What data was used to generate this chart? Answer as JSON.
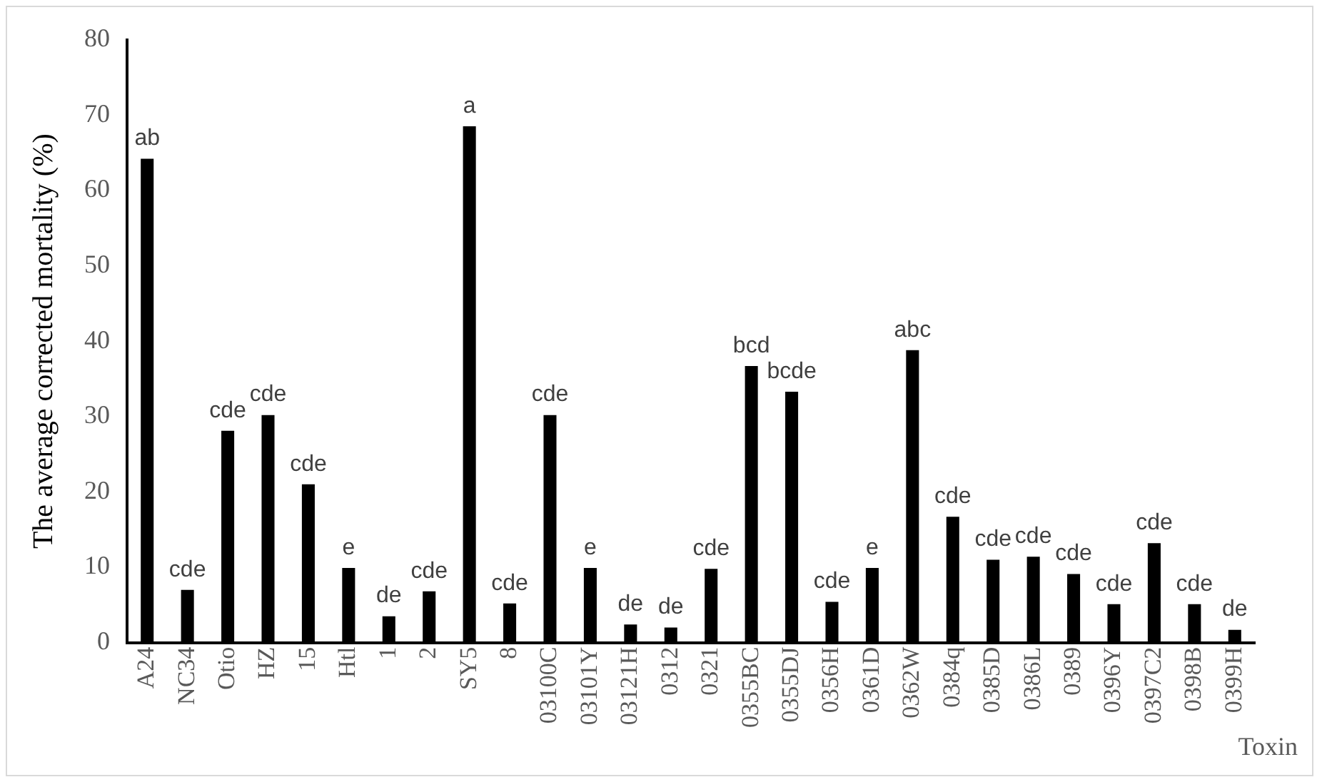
{
  "chart_data": {
    "type": "bar",
    "xlabel": "Toxin",
    "ylabel": "The average corrected mortality (%)",
    "categories": [
      "A24",
      "NC34",
      "Otio",
      "HZ",
      "15",
      "Htl",
      "1",
      "2",
      "SY5",
      "8",
      "03100C",
      "03101Y",
      "03121H",
      "0312",
      "0321",
      "0355BC",
      "0355DJ",
      "0356H",
      "0361D",
      "0362W",
      "0384q",
      "0385D",
      "0386L",
      "0389",
      "0396Y",
      "0397C2",
      "0398B",
      "0399H"
    ],
    "values": [
      64.2,
      7.0,
      28.1,
      30.2,
      21.0,
      9.9,
      3.5,
      6.8,
      68.5,
      5.2,
      30.2,
      9.9,
      2.4,
      2.0,
      9.8,
      36.7,
      33.3,
      5.4,
      9.9,
      38.8,
      16.7,
      11.0,
      11.4,
      9.1,
      5.1,
      13.2,
      5.1,
      1.7
    ],
    "value_labels": [
      "ab",
      "cde",
      "cde",
      "cde",
      "cde",
      "e",
      "de",
      "cde",
      "a",
      "cde",
      "cde",
      "e",
      "de",
      "de",
      "cde",
      "bcd",
      "bcde",
      "cde",
      "e",
      "abc",
      "cde",
      "cde",
      "cde",
      "cde",
      "cde",
      "cde",
      "cde",
      "de"
    ],
    "color": "#000000",
    "ylim": [
      0,
      80
    ],
    "yticks": [
      0,
      10,
      20,
      30,
      40,
      50,
      60,
      70,
      80
    ],
    "grid": false,
    "legend": false
  }
}
